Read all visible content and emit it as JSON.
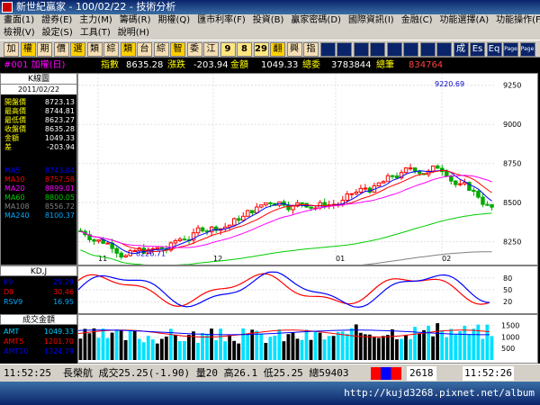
{
  "window": {
    "title": "新世紀贏家 - 100/02/22 - 技術分析"
  },
  "menu1": [
    "畫面(1)",
    "證券(E)",
    "主力(M)",
    "籌碼(R)",
    "期權(Q)",
    "匯市利率(F)",
    "投資(B)",
    "贏家密碼(D)",
    "國際資訊(I)",
    "金融(C)",
    "功能選擇(A)",
    "功能操作(F)"
  ],
  "menu2": [
    "檢視(V)",
    "設定(S)",
    "工具(T)",
    "說明(H)"
  ],
  "toolbar": [
    "加",
    "權",
    "期",
    "價",
    "選",
    "類",
    "綜",
    "類",
    "台",
    "綜",
    "智",
    "委",
    "江",
    "9",
    "8",
    "29",
    "翻",
    "興",
    "指",
    "",
    "",
    "",
    "",
    "",
    "",
    "",
    "",
    "成",
    "Es",
    "Eq",
    "Page",
    "Page"
  ],
  "header": {
    "code": "#001 加權(日)",
    "index_label": "指數",
    "index": "8635.28",
    "change_label": "漲跌",
    "change": "-203.94",
    "amount_label": "金額",
    "amount": "1049.33",
    "buy_label": "總委",
    "buy": "3783844",
    "sell_label": "總筆",
    "sell": "834764"
  },
  "left_panel": {
    "title": "K線圖",
    "date": "2011/02/22",
    "rows": [
      {
        "k": "開盤價",
        "v": "8723.13"
      },
      {
        "k": "最高價",
        "v": "8744.81"
      },
      {
        "k": "最低價",
        "v": "8623.27"
      },
      {
        "k": "收盤價",
        "v": "8635.28"
      },
      {
        "k": "金額",
        "v": "1049.33"
      },
      {
        "k": "差",
        "v": "-203.94"
      }
    ],
    "ma": [
      {
        "k": "MA5",
        "v": "8743.04",
        "c": "#0000ff"
      },
      {
        "k": "MA10",
        "v": "8757.58",
        "c": "#ff0000"
      },
      {
        "k": "MA20",
        "v": "8899.01",
        "c": "#ff00ff"
      },
      {
        "k": "MA60",
        "v": "8800.05",
        "c": "#00cc00"
      },
      {
        "k": "MA108",
        "v": "8556.72",
        "c": "#808080"
      },
      {
        "k": "MA240",
        "v": "8100.37",
        "c": "#00aaff"
      }
    ]
  },
  "kd_panel": {
    "title": "KD,J",
    "rows": [
      {
        "k": "K9",
        "v": "29.29",
        "c": "#0000ff"
      },
      {
        "k": "D9",
        "v": "30.46",
        "c": "#ff0000"
      },
      {
        "k": "RSV9",
        "v": "16.95",
        "c": "#00aaff"
      }
    ],
    "ticks": [
      "80",
      "50",
      "20"
    ]
  },
  "vol_panel": {
    "title": "成交金額",
    "rows": [
      {
        "k": "AMT",
        "v": "1049.33",
        "c": "#00ccff"
      },
      {
        "k": "AMT5",
        "v": "1201.70",
        "c": "#ff0000"
      },
      {
        "k": "AMT10",
        "v": "1324.79",
        "c": "#0000ff"
      }
    ],
    "ticks": [
      "1500",
      "1000",
      "500"
    ]
  },
  "chart_data": {
    "type": "candlestick",
    "y_ticks": [
      "9250",
      "9000",
      "8750",
      "8500",
      "8250"
    ],
    "ylim": [
      8150,
      9300
    ],
    "x_labels": [
      "11",
      "12",
      "01",
      "02"
    ],
    "annotations": [
      {
        "text": "9220.69",
        "value": 9220.69
      },
      {
        "text": "8226.71",
        "value": 8226.71
      }
    ]
  },
  "statusbar": {
    "time": "11:52:25",
    "ticker": "長榮航 成交25.25(-1.90) 量20 高26.1 低25.25 總59403",
    "code_box": "2618",
    "clock": "11:52:26"
  },
  "watermark": "http://kujd3268.pixnet.net/album"
}
